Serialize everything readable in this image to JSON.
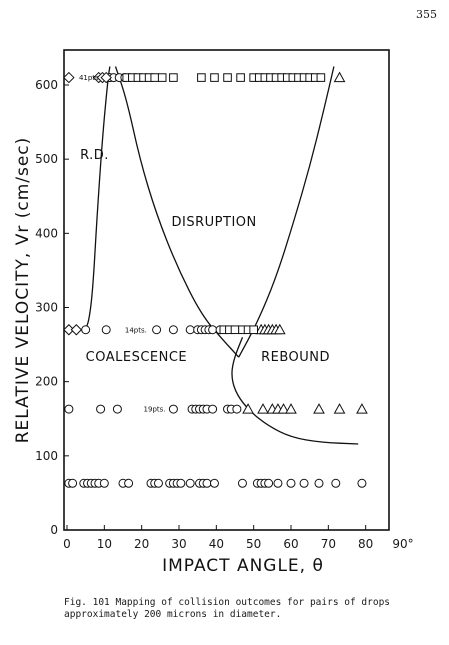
{
  "page_number": "355",
  "caption": "Fig. 101  Mapping of collision outcomes for pairs of drops\napproximately 200 microns in diameter.",
  "chart_data": {
    "type": "scatter",
    "title": "",
    "xlabel": "IMPACT ANGLE, θ",
    "ylabel": "RELATIVE VELOCITY, Vr (cm/sec)",
    "xlim": [
      0,
      90
    ],
    "ylim": [
      0,
      640
    ],
    "x_ticks": [
      "0",
      "10",
      "20",
      "30",
      "40",
      "50",
      "60",
      "70",
      "80",
      "90°"
    ],
    "y_ticks": [
      "0",
      "100",
      "200",
      "300",
      "400",
      "500",
      "600"
    ],
    "regions": [
      {
        "name": "R.D.",
        "label": "R.D.",
        "x": 3.5,
        "y": 500
      },
      {
        "name": "disruption",
        "label": "DISRUPTION",
        "x": 28,
        "y": 410
      },
      {
        "name": "coalescence",
        "label": "COALESCENCE",
        "x": 5,
        "y": 228
      },
      {
        "name": "rebound",
        "label": "REBOUND",
        "x": 52,
        "y": 228
      }
    ],
    "point_count_labels": [
      {
        "label": "41pts.",
        "x": 3.2,
        "y": 610
      },
      {
        "label": "14pts.",
        "x": 15.5,
        "y": 270
      },
      {
        "label": "19pts.",
        "x": 20.5,
        "y": 163
      }
    ],
    "series": [
      {
        "name": "coalescence",
        "marker": "circle",
        "points": [
          [
            11.5,
            610
          ],
          [
            12.5,
            610
          ],
          [
            14,
            610
          ],
          [
            15.5,
            610
          ],
          [
            5,
            270
          ],
          [
            10.5,
            270
          ],
          [
            24,
            270
          ],
          [
            28.5,
            270
          ],
          [
            33,
            270
          ],
          [
            35,
            270
          ],
          [
            36,
            270
          ],
          [
            37,
            270
          ],
          [
            38,
            270
          ],
          [
            39,
            270
          ],
          [
            41,
            270
          ],
          [
            0.5,
            163
          ],
          [
            9,
            163
          ],
          [
            13.5,
            163
          ],
          [
            28.5,
            163
          ],
          [
            33.5,
            163
          ],
          [
            34.5,
            163
          ],
          [
            35.5,
            163
          ],
          [
            36.5,
            163
          ],
          [
            37.5,
            163
          ],
          [
            39,
            163
          ],
          [
            43,
            163
          ],
          [
            44,
            163
          ],
          [
            45.5,
            163
          ],
          [
            0.5,
            63
          ],
          [
            1.5,
            63
          ],
          [
            4.5,
            63
          ],
          [
            5.5,
            63
          ],
          [
            6.5,
            63
          ],
          [
            7.5,
            63
          ],
          [
            8.5,
            63
          ],
          [
            10,
            63
          ],
          [
            15,
            63
          ],
          [
            16.5,
            63
          ],
          [
            22.5,
            63
          ],
          [
            23.5,
            63
          ],
          [
            24.5,
            63
          ],
          [
            27.5,
            63
          ],
          [
            28.5,
            63
          ],
          [
            29.5,
            63
          ],
          [
            30.5,
            63
          ],
          [
            33,
            63
          ],
          [
            35.5,
            63
          ],
          [
            36.5,
            63
          ],
          [
            37.5,
            63
          ],
          [
            39.5,
            63
          ],
          [
            47,
            63
          ],
          [
            51,
            63
          ],
          [
            52,
            63
          ],
          [
            53,
            63
          ],
          [
            54,
            63
          ],
          [
            56.5,
            63
          ],
          [
            60,
            63
          ],
          [
            63.5,
            63
          ],
          [
            67.5,
            63
          ],
          [
            72,
            63
          ],
          [
            79,
            63
          ]
        ]
      },
      {
        "name": "rebound",
        "marker": "triangle",
        "points": [
          [
            73,
            610
          ],
          [
            52,
            270
          ],
          [
            53,
            270
          ],
          [
            54,
            270
          ],
          [
            55,
            270
          ],
          [
            56,
            270
          ],
          [
            57,
            270
          ],
          [
            48.5,
            163
          ],
          [
            52.5,
            163
          ],
          [
            55,
            163
          ],
          [
            56.5,
            163
          ],
          [
            58,
            163
          ],
          [
            60,
            163
          ],
          [
            67.5,
            163
          ],
          [
            73,
            163
          ],
          [
            79,
            163
          ]
        ]
      },
      {
        "name": "disruption",
        "marker": "square",
        "points": [
          [
            16,
            610
          ],
          [
            17.5,
            610
          ],
          [
            19,
            610
          ],
          [
            20.5,
            610
          ],
          [
            22,
            610
          ],
          [
            23.5,
            610
          ],
          [
            25.5,
            610
          ],
          [
            28.5,
            610
          ],
          [
            36,
            610
          ],
          [
            39.5,
            610
          ],
          [
            43,
            610
          ],
          [
            46.5,
            610
          ],
          [
            50,
            610
          ],
          [
            51.5,
            610
          ],
          [
            53,
            610
          ],
          [
            54.5,
            610
          ],
          [
            56,
            610
          ],
          [
            57.5,
            610
          ],
          [
            59,
            610
          ],
          [
            60.5,
            610
          ],
          [
            62,
            610
          ],
          [
            63.5,
            610
          ],
          [
            65,
            610
          ],
          [
            66.5,
            610
          ],
          [
            68,
            610
          ],
          [
            42,
            270
          ],
          [
            43.5,
            270
          ],
          [
            45,
            270
          ],
          [
            47,
            270
          ],
          [
            48.5,
            270
          ],
          [
            50,
            270
          ]
        ]
      },
      {
        "name": "reflexive disruption",
        "marker": "diamond",
        "points": [
          [
            0.5,
            610
          ],
          [
            8.5,
            610
          ],
          [
            9.5,
            610
          ],
          [
            10.5,
            610
          ],
          [
            0.5,
            270
          ],
          [
            2.5,
            270
          ]
        ]
      }
    ],
    "boundaries": [
      {
        "name": "rd-boundary",
        "points": [
          [
            5,
            270
          ],
          [
            6,
            285
          ],
          [
            7,
            330
          ],
          [
            8,
            420
          ],
          [
            9.5,
            530
          ],
          [
            11,
            610
          ],
          [
            11.5,
            625
          ]
        ]
      },
      {
        "name": "disruption-left-boundary",
        "points": [
          [
            13,
            625
          ],
          [
            16,
            580
          ],
          [
            19.5,
            500
          ],
          [
            24,
            425
          ],
          [
            29.5,
            355
          ],
          [
            36,
            290
          ],
          [
            42,
            255
          ],
          [
            46,
            233
          ]
        ]
      },
      {
        "name": "disruption-right-boundary",
        "points": [
          [
            46,
            233
          ],
          [
            51,
            280
          ],
          [
            56,
            340
          ],
          [
            61,
            420
          ],
          [
            65,
            490
          ],
          [
            68.5,
            560
          ],
          [
            71.5,
            625
          ]
        ]
      },
      {
        "name": "rebound-boundary",
        "points": [
          [
            47,
            260
          ],
          [
            44.5,
            228
          ],
          [
            44,
            205
          ],
          [
            45.5,
            182
          ],
          [
            49,
            160
          ],
          [
            54,
            140
          ],
          [
            60,
            125
          ],
          [
            68,
            118
          ],
          [
            78,
            116
          ]
        ]
      }
    ]
  }
}
